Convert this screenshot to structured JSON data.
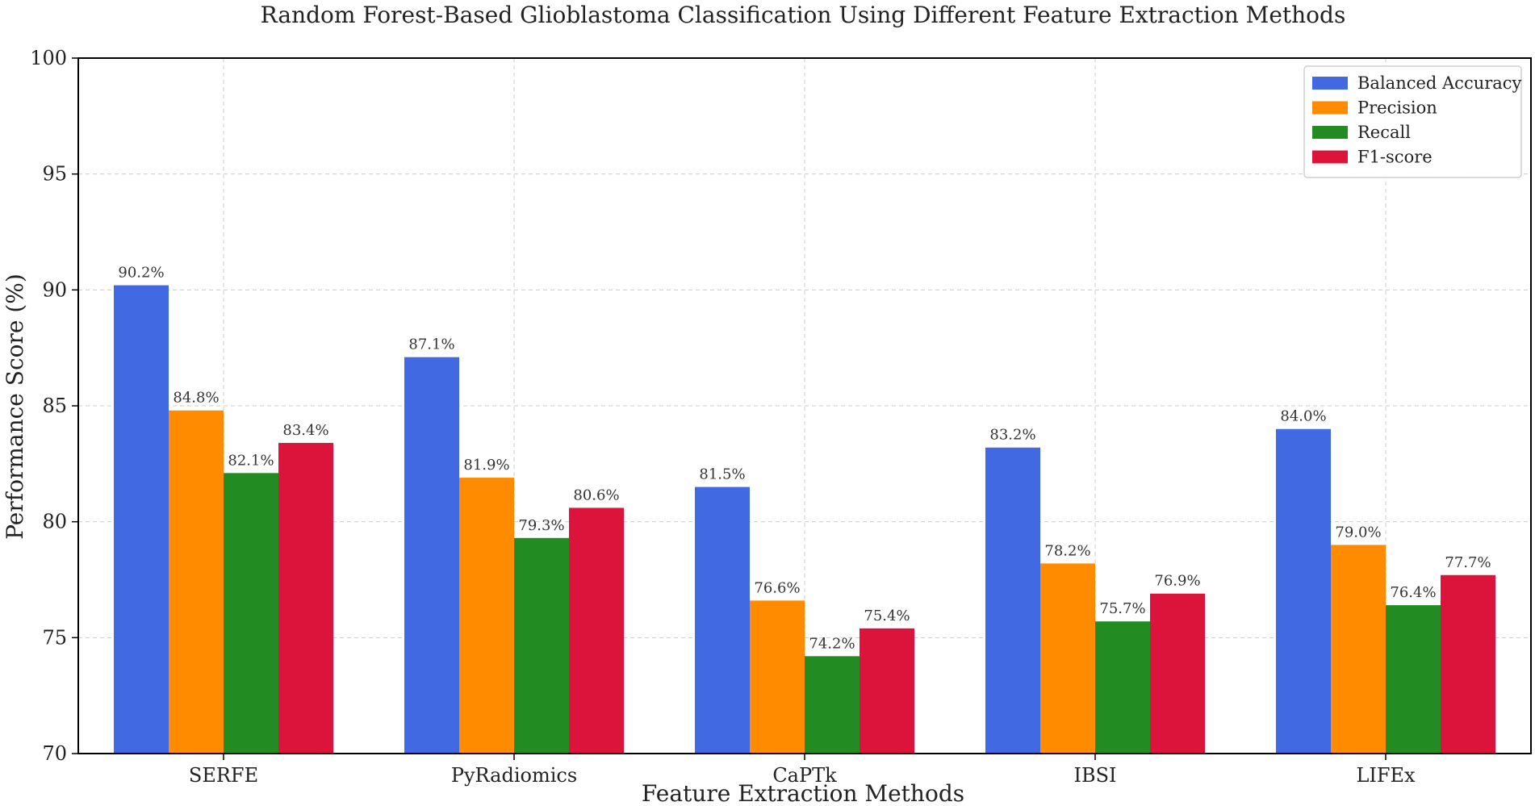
{
  "chart_data": {
    "type": "bar",
    "title": "Random Forest-Based Glioblastoma Classification Using Different Feature Extraction Methods",
    "xlabel": "Feature Extraction Methods",
    "ylabel": "Performance Score (%)",
    "ylim": [
      70,
      100
    ],
    "yticks": [
      70,
      75,
      80,
      85,
      90,
      95,
      100
    ],
    "grid": true,
    "legend_position": "top-right",
    "categories": [
      "SERFE",
      "PyRadiomics",
      "CaPTk",
      "IBSI",
      "LIFEx"
    ],
    "series": [
      {
        "name": "Balanced Accuracy",
        "color": "#4169E1",
        "values": [
          90.2,
          87.1,
          81.5,
          83.2,
          84.0
        ],
        "labels": [
          "90.2%",
          "87.1%",
          "81.5%",
          "83.2%",
          "84.0%"
        ]
      },
      {
        "name": "Precision",
        "color": "#FF8C00",
        "values": [
          84.8,
          81.9,
          76.6,
          78.2,
          79.0
        ],
        "labels": [
          "84.8%",
          "81.9%",
          "76.6%",
          "78.2%",
          "79.0%"
        ]
      },
      {
        "name": "Recall",
        "color": "#228B22",
        "values": [
          82.1,
          79.3,
          74.2,
          75.7,
          76.4
        ],
        "labels": [
          "82.1%",
          "79.3%",
          "74.2%",
          "75.7%",
          "76.4%"
        ]
      },
      {
        "name": "F1-score",
        "color": "#DC143C",
        "values": [
          83.4,
          80.6,
          75.4,
          76.9,
          77.7
        ],
        "labels": [
          "83.4%",
          "80.6%",
          "75.4%",
          "76.9%",
          "77.7%"
        ]
      }
    ]
  }
}
